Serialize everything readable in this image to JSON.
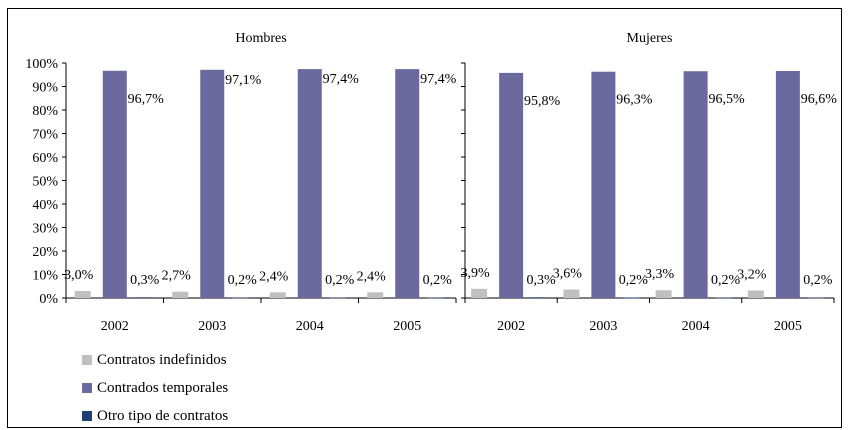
{
  "colors": {
    "indefinidos": "#c0c0c0",
    "temporales": "#6a6a9e",
    "otro": "#1f3f6f"
  },
  "chart_data": [
    {
      "type": "bar",
      "title": "Hombres",
      "categories": [
        "2002",
        "2003",
        "2004",
        "2005"
      ],
      "ylim": [
        0,
        100
      ],
      "yticks": [
        "0%",
        "10%",
        "20%",
        "30%",
        "40%",
        "50%",
        "60%",
        "70%",
        "80%",
        "90%",
        "100%"
      ],
      "series": [
        {
          "name": "Contratos indefinidos",
          "values": [
            3.0,
            2.7,
            2.4,
            2.4
          ],
          "labels": [
            "3,0%",
            "2,7%",
            "2,4%",
            "2,4%"
          ]
        },
        {
          "name": "Contrados temporales",
          "values": [
            96.7,
            97.1,
            97.4,
            97.4
          ],
          "labels": [
            "96,7%",
            "97,1%",
            "97,4%",
            "97,4%"
          ]
        },
        {
          "name": "Otro tipo de contratos",
          "values": [
            0.3,
            0.2,
            0.2,
            0.2
          ],
          "labels": [
            "0,3%",
            "0,2%",
            "0,2%",
            "0,2%"
          ]
        }
      ]
    },
    {
      "type": "bar",
      "title": "Mujeres",
      "categories": [
        "2002",
        "2003",
        "2004",
        "2005"
      ],
      "ylim": [
        0,
        100
      ],
      "series": [
        {
          "name": "Contratos indefinidos",
          "values": [
            3.9,
            3.6,
            3.3,
            3.2
          ],
          "labels": [
            "3,9%",
            "3,6%",
            "3,3%",
            "3,2%"
          ]
        },
        {
          "name": "Contrados temporales",
          "values": [
            95.8,
            96.3,
            96.5,
            96.6
          ],
          "labels": [
            "95,8%",
            "96,3%",
            "96,5%",
            "96,6%"
          ]
        },
        {
          "name": "Otro tipo de contratos",
          "values": [
            0.3,
            0.2,
            0.2,
            0.2
          ],
          "labels": [
            "0,3%",
            "0,2%",
            "0,2%",
            "0,2%"
          ]
        }
      ]
    }
  ],
  "legend": [
    {
      "label": "Contratos indefinidos",
      "color_key": "indefinidos"
    },
    {
      "label": "Contrados temporales",
      "color_key": "temporales"
    },
    {
      "label": "Otro tipo de contratos",
      "color_key": "otro"
    }
  ]
}
